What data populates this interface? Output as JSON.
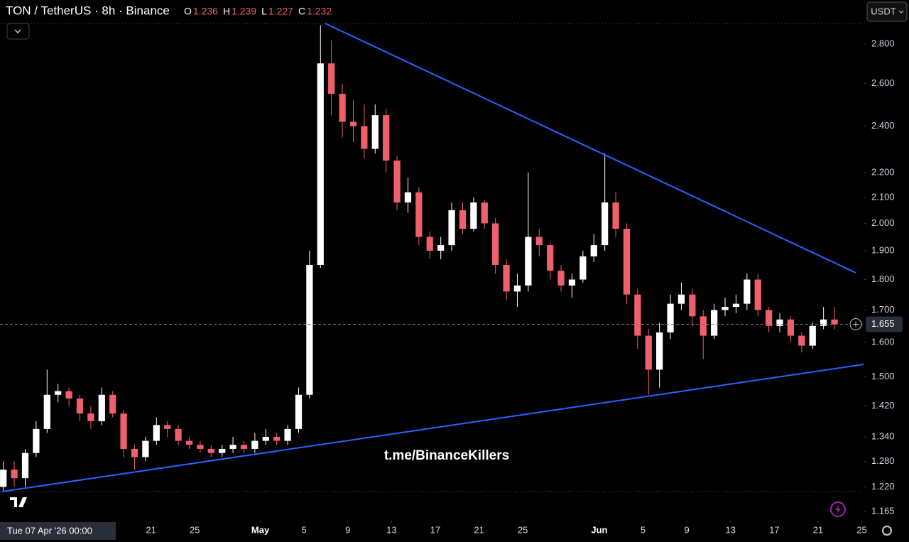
{
  "header": {
    "symbol": "TON / TetherUS · 8h · Binance",
    "ohlc": [
      {
        "label": "O",
        "value": 1.236
      },
      {
        "label": "H",
        "value": 1.239
      },
      {
        "label": "L",
        "value": 1.227
      },
      {
        "label": "C",
        "value": 1.232
      }
    ],
    "currency": "USDT"
  },
  "chart_data": {
    "type": "candlestick",
    "log_scale": true,
    "up_color": "#ffffff",
    "down_color": "#ef5f6c",
    "open": [
      1.22,
      1.26,
      1.24,
      1.3,
      1.36,
      1.45,
      1.46,
      1.44,
      1.4,
      1.38,
      1.45,
      1.4,
      1.31,
      1.29,
      1.33,
      1.37,
      1.36,
      1.33,
      1.32,
      1.31,
      1.3,
      1.31,
      1.32,
      1.31,
      1.33,
      1.34,
      1.33,
      1.36,
      1.45,
      1.85,
      2.7,
      2.55,
      2.42,
      2.4,
      2.3,
      2.45,
      2.25,
      2.08,
      2.12,
      1.95,
      1.9,
      1.92,
      2.05,
      1.98,
      2.08,
      2.0,
      1.85,
      1.76,
      1.78,
      1.95,
      1.92,
      1.83,
      1.78,
      1.8,
      1.88,
      1.92,
      2.08,
      1.98,
      1.75,
      1.62,
      1.52,
      1.63,
      1.72,
      1.75,
      1.68,
      1.62,
      1.7,
      1.71,
      1.72,
      1.8,
      1.7,
      1.65,
      1.67,
      1.62,
      1.59,
      1.65,
      1.67
    ],
    "high": [
      1.28,
      1.28,
      1.31,
      1.38,
      1.52,
      1.48,
      1.47,
      1.45,
      1.42,
      1.47,
      1.46,
      1.41,
      1.32,
      1.34,
      1.39,
      1.38,
      1.37,
      1.34,
      1.33,
      1.32,
      1.32,
      1.34,
      1.33,
      1.35,
      1.36,
      1.35,
      1.37,
      1.47,
      1.9,
      2.9,
      2.82,
      2.6,
      2.52,
      2.5,
      2.5,
      2.48,
      2.27,
      2.18,
      2.14,
      1.97,
      1.95,
      2.08,
      2.08,
      2.1,
      2.09,
      2.02,
      1.87,
      1.82,
      2.2,
      1.98,
      1.93,
      1.85,
      1.82,
      1.9,
      1.96,
      2.28,
      2.12,
      2.0,
      1.77,
      1.64,
      1.66,
      1.75,
      1.79,
      1.77,
      1.7,
      1.72,
      1.74,
      1.75,
      1.82,
      1.82,
      1.71,
      1.69,
      1.68,
      1.63,
      1.66,
      1.71,
      1.71
    ],
    "low": [
      1.21,
      1.22,
      1.22,
      1.29,
      1.35,
      1.43,
      1.42,
      1.38,
      1.36,
      1.37,
      1.39,
      1.29,
      1.26,
      1.28,
      1.32,
      1.34,
      1.32,
      1.31,
      1.3,
      1.29,
      1.29,
      1.3,
      1.3,
      1.3,
      1.32,
      1.32,
      1.32,
      1.35,
      1.44,
      1.84,
      2.45,
      2.35,
      2.33,
      2.26,
      2.28,
      2.2,
      2.05,
      2.04,
      1.92,
      1.87,
      1.87,
      1.9,
      1.96,
      1.97,
      1.98,
      1.82,
      1.73,
      1.71,
      1.76,
      1.88,
      1.8,
      1.76,
      1.74,
      1.79,
      1.86,
      1.9,
      1.95,
      1.72,
      1.58,
      1.45,
      1.47,
      1.61,
      1.7,
      1.65,
      1.55,
      1.61,
      1.68,
      1.69,
      1.7,
      1.68,
      1.63,
      1.63,
      1.6,
      1.57,
      1.58,
      1.64,
      1.64
    ],
    "close": [
      1.26,
      1.24,
      1.3,
      1.36,
      1.45,
      1.46,
      1.44,
      1.4,
      1.38,
      1.45,
      1.4,
      1.31,
      1.29,
      1.33,
      1.37,
      1.36,
      1.33,
      1.32,
      1.31,
      1.3,
      1.31,
      1.32,
      1.31,
      1.33,
      1.34,
      1.33,
      1.36,
      1.45,
      1.85,
      2.7,
      2.55,
      2.42,
      2.4,
      2.3,
      2.45,
      2.25,
      2.08,
      2.12,
      1.95,
      1.9,
      1.92,
      2.05,
      1.98,
      2.08,
      2.0,
      1.85,
      1.76,
      1.78,
      1.95,
      1.92,
      1.83,
      1.78,
      1.8,
      1.88,
      1.92,
      2.08,
      1.98,
      1.75,
      1.62,
      1.52,
      1.63,
      1.72,
      1.75,
      1.68,
      1.62,
      1.7,
      1.71,
      1.72,
      1.8,
      1.7,
      1.65,
      1.67,
      1.62,
      1.59,
      1.65,
      1.67,
      1.655
    ],
    "last_price": 1.655,
    "ylim": [
      1.145,
      3.041
    ],
    "yticks": [
      {
        "value": 2.8,
        "label": "2.800"
      },
      {
        "value": 2.6,
        "label": "2.600"
      },
      {
        "value": 2.4,
        "label": "2.400"
      },
      {
        "value": 2.2,
        "label": "2.200"
      },
      {
        "value": 2.1,
        "label": "2.100"
      },
      {
        "value": 2.0,
        "label": "2.000"
      },
      {
        "value": 1.9,
        "label": "1.900"
      },
      {
        "value": 1.8,
        "label": "1.800"
      },
      {
        "value": 1.7,
        "label": "1.700"
      },
      {
        "value": 1.6,
        "label": "1.600"
      },
      {
        "value": 1.5,
        "label": "1.500"
      },
      {
        "value": 1.42,
        "label": "1.420"
      },
      {
        "value": 1.34,
        "label": "1.340"
      },
      {
        "value": 1.28,
        "label": "1.280"
      },
      {
        "value": 1.22,
        "label": "1.220"
      },
      1.165
    ],
    "xlim": [
      0.195,
      79.16
    ],
    "xticks": [
      {
        "value": 14,
        "label": "21"
      },
      {
        "value": 18,
        "label": "25"
      },
      {
        "value": 24,
        "label": "May"
      },
      {
        "value": 28,
        "label": "5"
      },
      {
        "value": 32,
        "label": "9"
      },
      {
        "value": 36,
        "label": "13"
      },
      {
        "value": 40,
        "label": "17"
      },
      {
        "value": 44,
        "label": "21"
      },
      {
        "value": 48,
        "label": "25"
      },
      {
        "value": 55,
        "label": "Jun"
      },
      {
        "value": 59,
        "label": "5"
      },
      {
        "value": 63,
        "label": "9"
      },
      {
        "value": 67,
        "label": "13"
      },
      {
        "value": 71,
        "label": "17"
      },
      {
        "value": 75,
        "label": "21"
      },
      {
        "value": 79,
        "label": "25"
      }
    ],
    "crosshair_time": "Tue 07 Apr '26  00:00",
    "watermark": "t.me/BinanceKillers"
  }
}
